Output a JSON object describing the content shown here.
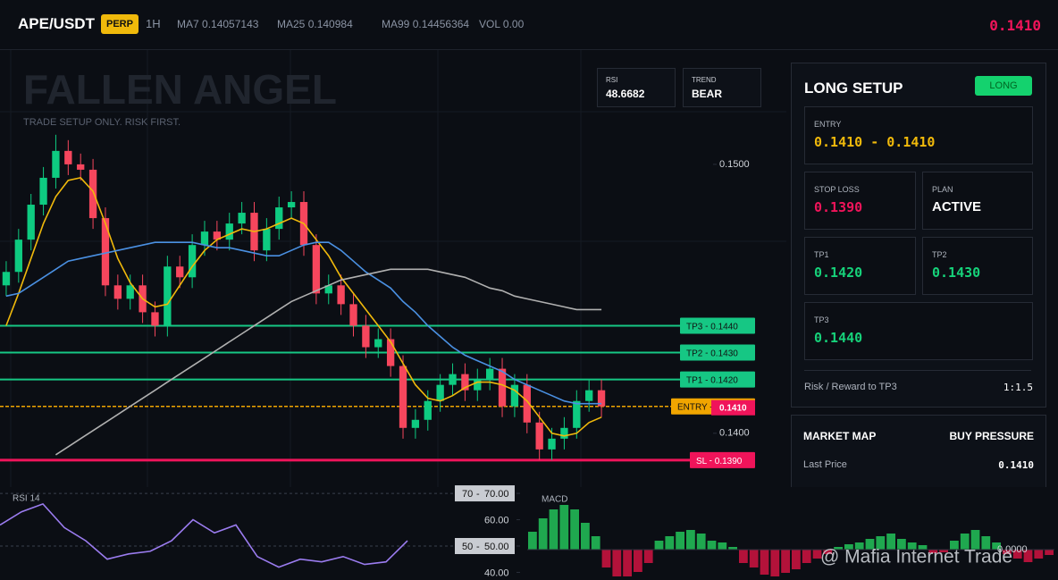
{
  "header": {
    "symbol": "APE/USDT",
    "badge": "PERP",
    "interval": "1H",
    "indicators": [
      {
        "label": "MA7",
        "value": "0.14057143"
      },
      {
        "label": "MA25",
        "value": "0.140984"
      },
      {
        "label": "MA99",
        "value": "0.14456364"
      },
      {
        "label": "VOL",
        "value": "0.00"
      }
    ],
    "price": "0.1410"
  },
  "brand": {
    "title": "FALLEN ANGEL",
    "subtitle": "TRADE SETUP ONLY. RISK FIRST.",
    "credit": "@ Mafia Internet Trade"
  },
  "stats": [
    {
      "label": "RSI",
      "value": "48.6682"
    },
    {
      "label": "TREND",
      "value": "BEAR"
    }
  ],
  "price_chart": {
    "type": "candlestick",
    "up_color": "#0ecb81",
    "down_color": "#f6465d",
    "ylim": [
      0.138,
      0.15425
    ],
    "yticks": [
      {
        "value": 0.15,
        "label": "0.1500"
      },
      {
        "value": 0.14,
        "label": "0.1400"
      }
    ],
    "candles": [
      [
        0.1455,
        0.1464,
        0.1451,
        0.146
      ],
      [
        0.146,
        0.1476,
        0.1456,
        0.1472
      ],
      [
        0.1472,
        0.1489,
        0.1468,
        0.1485
      ],
      [
        0.1485,
        0.1499,
        0.1481,
        0.1495
      ],
      [
        0.1495,
        0.1511,
        0.1491,
        0.1505
      ],
      [
        0.1505,
        0.1509,
        0.1496,
        0.15
      ],
      [
        0.15,
        0.1504,
        0.1494,
        0.1498
      ],
      [
        0.1498,
        0.1502,
        0.1476,
        0.148
      ],
      [
        0.148,
        0.1484,
        0.1451,
        0.1455
      ],
      [
        0.1455,
        0.1459,
        0.1446,
        0.145
      ],
      [
        0.145,
        0.1459,
        0.1446,
        0.1455
      ],
      [
        0.1455,
        0.1459,
        0.1441,
        0.1445
      ],
      [
        0.1445,
        0.1449,
        0.1436,
        0.144
      ],
      [
        0.144,
        0.1466,
        0.1436,
        0.1462
      ],
      [
        0.1462,
        0.1466,
        0.1454,
        0.1458
      ],
      [
        0.1458,
        0.1474,
        0.1454,
        0.147
      ],
      [
        0.147,
        0.1479,
        0.1466,
        0.1475
      ],
      [
        0.1475,
        0.1479,
        0.1468,
        0.1472
      ],
      [
        0.1472,
        0.1482,
        0.1468,
        0.1478
      ],
      [
        0.1478,
        0.1486,
        0.1474,
        0.1482
      ],
      [
        0.1482,
        0.1486,
        0.1464,
        0.1468
      ],
      [
        0.1468,
        0.148,
        0.1464,
        0.1476
      ],
      [
        0.1476,
        0.1488,
        0.1472,
        0.1484
      ],
      [
        0.1484,
        0.149,
        0.148,
        0.1486
      ],
      [
        0.1486,
        0.149,
        0.1466,
        0.147
      ],
      [
        0.147,
        0.1474,
        0.1448,
        0.1452
      ],
      [
        0.1452,
        0.1459,
        0.1448,
        0.1455
      ],
      [
        0.1455,
        0.1459,
        0.1444,
        0.1448
      ],
      [
        0.1448,
        0.1452,
        0.1436,
        0.144
      ],
      [
        0.144,
        0.1444,
        0.1428,
        0.1432
      ],
      [
        0.1432,
        0.1439,
        0.1428,
        0.1435
      ],
      [
        0.1435,
        0.1439,
        0.1421,
        0.1425
      ],
      [
        0.1425,
        0.1429,
        0.1398,
        0.1402
      ],
      [
        0.1402,
        0.1409,
        0.1398,
        0.1405
      ],
      [
        0.1405,
        0.1416,
        0.1401,
        0.1412
      ],
      [
        0.1412,
        0.1422,
        0.1408,
        0.1418
      ],
      [
        0.1418,
        0.1426,
        0.1414,
        0.1422
      ],
      [
        0.1422,
        0.1426,
        0.1412,
        0.1416
      ],
      [
        0.1416,
        0.1424,
        0.1412,
        0.142
      ],
      [
        0.142,
        0.1428,
        0.1416,
        0.1424
      ],
      [
        0.1424,
        0.1428,
        0.1406,
        0.141
      ],
      [
        0.141,
        0.1422,
        0.1406,
        0.1418
      ],
      [
        0.1418,
        0.1422,
        0.14,
        0.1404
      ],
      [
        0.1404,
        0.1408,
        0.139,
        0.1394
      ],
      [
        0.1394,
        0.1402,
        0.139,
        0.1398
      ],
      [
        0.1398,
        0.1406,
        0.1394,
        0.1402
      ],
      [
        0.1402,
        0.1416,
        0.1398,
        0.1412
      ],
      [
        0.1412,
        0.142,
        0.1408,
        0.1416
      ],
      [
        0.1416,
        0.142,
        0.1406,
        0.141
      ]
    ],
    "series": [
      {
        "color": "#f0b90b",
        "values": [
          0.144,
          0.1452,
          0.1465,
          0.1478,
          0.1488,
          0.1494,
          0.1495,
          0.149,
          0.1478,
          0.1465,
          0.1456,
          0.145,
          0.1447,
          0.1448,
          0.1455,
          0.1462,
          0.1468,
          0.1472,
          0.1474,
          0.1476,
          0.1475,
          0.1476,
          0.1478,
          0.148,
          0.1478,
          0.1472,
          0.1466,
          0.1458,
          0.1452,
          0.1446,
          0.144,
          0.1434,
          0.1426,
          0.1418,
          0.1413,
          0.1412,
          0.1414,
          0.1417,
          0.1419,
          0.1419,
          0.1418,
          0.1416,
          0.1412,
          0.1406,
          0.14,
          0.1399,
          0.14,
          0.1404,
          0.1406
        ]
      },
      {
        "color": "#4a90e2",
        "values": [
          0.1451,
          0.1452,
          0.1455,
          0.1458,
          0.1461,
          0.1464,
          0.1465,
          0.1466,
          0.1467,
          0.1468,
          0.1469,
          0.147,
          0.1471,
          0.1471,
          0.1471,
          0.1471,
          0.147,
          0.1469,
          0.1469,
          0.1468,
          0.1467,
          0.1466,
          0.1466,
          0.1468,
          0.147,
          0.1471,
          0.1471,
          0.1468,
          0.1464,
          0.146,
          0.1457,
          0.1454,
          0.1449,
          0.1445,
          0.144,
          0.1436,
          0.1432,
          0.1429,
          0.1427,
          0.1425,
          0.1423,
          0.142,
          0.1418,
          0.1416,
          0.1414,
          0.1412,
          0.1411,
          0.1411,
          0.1411
        ]
      },
      {
        "color": "#b0b0b0",
        "values": [
          null,
          null,
          null,
          null,
          0.1392,
          0.1395,
          0.1398,
          0.1401,
          0.1404,
          0.1407,
          0.141,
          0.1413,
          0.1416,
          0.1419,
          0.1422,
          0.1425,
          0.1428,
          0.1431,
          0.1434,
          0.1437,
          0.144,
          0.1443,
          0.1446,
          0.1449,
          0.1451,
          0.1453,
          0.1455,
          0.1457,
          0.1458,
          0.1459,
          0.146,
          0.1461,
          0.1461,
          0.1461,
          0.1461,
          0.146,
          0.1459,
          0.1458,
          0.1456,
          0.1454,
          0.1453,
          0.1451,
          0.145,
          0.1449,
          0.1448,
          0.1447,
          0.1446,
          0.1446,
          0.1446
        ]
      }
    ],
    "levels": [
      {
        "name": "TP3",
        "value": 0.144,
        "label": "0.1440",
        "color": "#16c784"
      },
      {
        "name": "TP2",
        "value": 0.143,
        "label": "0.1430",
        "color": "#16c784"
      },
      {
        "name": "TP1",
        "value": 0.142,
        "label": "0.1420",
        "color": "#16c784"
      },
      {
        "name": "ENTRY",
        "value": 0.141,
        "label": "0.1410",
        "color": "#f0a500"
      },
      {
        "name": "SL",
        "value": 0.139,
        "label": "0.1390",
        "color": "#f0145a"
      }
    ],
    "last_price": {
      "value": 0.141,
      "label": "0.1410",
      "color": "#f0145a"
    }
  },
  "rsi_panel": {
    "type": "line",
    "title": "RSI 14",
    "color": "#9b7cf0",
    "ylim": [
      37.1,
      72.4
    ],
    "yticks": [
      {
        "value": 70,
        "label": "70.00"
      },
      {
        "value": 60,
        "label": "60.00"
      },
      {
        "value": 50,
        "label": "50.00"
      },
      {
        "value": 40,
        "label": "40.00"
      }
    ],
    "levels": [
      {
        "value": 70,
        "label": "70"
      },
      {
        "value": 50,
        "label": "50"
      }
    ],
    "values": [
      58,
      63,
      66,
      57,
      52,
      45,
      47,
      48,
      52,
      60,
      55,
      58,
      46,
      42,
      45,
      44,
      46,
      43,
      44,
      52
    ]
  },
  "macd_panel": {
    "type": "bar",
    "title": "MACD",
    "up_color": "#1fa84f",
    "down_color": "#b3123a",
    "ylim": [
      -3.4,
      7
    ],
    "yticks": [
      {
        "value": 0,
        "label": "0.0000"
      }
    ],
    "values": [
      2,
      3.5,
      4.5,
      5,
      4.5,
      3,
      1.5,
      -2,
      -3,
      -3,
      -2.5,
      -1.5,
      1,
      1.5,
      2,
      2.2,
      1.8,
      1,
      0.8,
      0.3,
      -1.5,
      -2,
      -2.8,
      -3,
      -2.6,
      -2.2,
      -1.5,
      -1,
      -0.5,
      0.3,
      0.6,
      0.8,
      1.2,
      1.5,
      1.8,
      1.2,
      0.8,
      0.5,
      -0.4,
      -0.3,
      1,
      1.8,
      2.2,
      1.5,
      0.8,
      -0.5,
      -1,
      -1.4,
      -1,
      -0.6
    ]
  },
  "setup": {
    "title": "LONG SETUP",
    "badge": "LONG",
    "entry": {
      "label": "ENTRY",
      "value": "0.1410 - 0.1410"
    },
    "stop_loss": {
      "label": "STOP LOSS",
      "value": "0.1390"
    },
    "plan": {
      "label": "PLAN",
      "value": "ACTIVE"
    },
    "tp1": {
      "label": "TP1",
      "value": "0.1420"
    },
    "tp2": {
      "label": "TP2",
      "value": "0.1430"
    },
    "tp3": {
      "label": "TP3",
      "value": "0.1440"
    },
    "risk_reward": {
      "label": "Risk / Reward to TP3",
      "value": "1:1.5"
    }
  },
  "market_map": {
    "title": "MARKET MAP",
    "status": "BUY PRESSURE",
    "rows": [
      {
        "label": "Last Price",
        "value": "0.1410"
      }
    ]
  }
}
